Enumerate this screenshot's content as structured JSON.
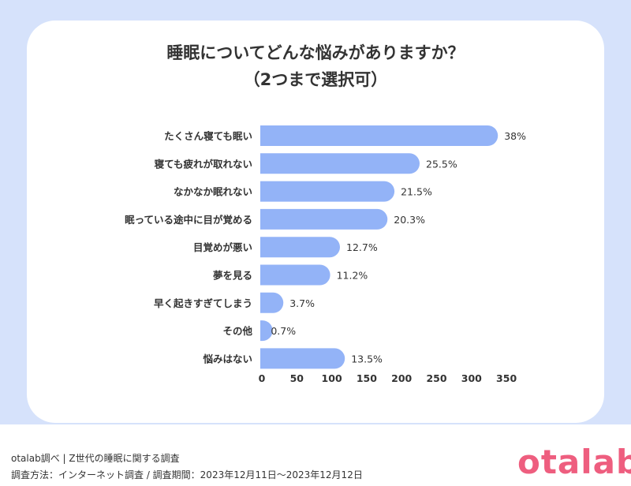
{
  "header": {
    "title_line1": "睡眠についてどんな悩みがありますか？",
    "title_line2": "（2つまで選択可）"
  },
  "chart_data": {
    "type": "bar",
    "orientation": "horizontal",
    "categories": [
      "たくさん寝ても眠い",
      "寝ても疲れが取れない",
      "なかなか眠れない",
      "眠っている途中に目が覚める",
      "目覚めが悪い",
      "夢を見る",
      "早く起きすぎてしまう",
      "その他",
      "悩みはない"
    ],
    "values": [
      340,
      228,
      192,
      182,
      114,
      100,
      33,
      6,
      121
    ],
    "data_labels": [
      "38%",
      "25.5%",
      "21.5%",
      "20.3%",
      "12.7%",
      "11.2%",
      "3.7%",
      "0.7%",
      "13.5%"
    ],
    "xticks": [
      "0",
      "50",
      "100",
      "150",
      "200",
      "250",
      "300",
      "350"
    ],
    "xlim": [
      0,
      350
    ],
    "grid": false,
    "bar_color": "#93b3f7"
  },
  "footer": {
    "source_line1": "otalab調べ | Z世代の睡眠に関する調査",
    "source_line2": "調査方法：インターネット調査 / 調査期間：2023年12月11日〜2023年12月12日",
    "logo": "otalab"
  }
}
